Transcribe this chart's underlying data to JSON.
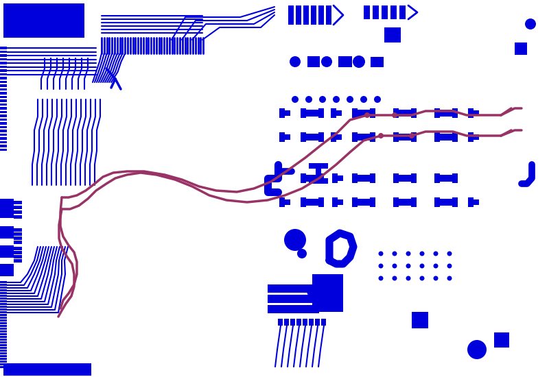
{
  "bg_color": "#ffffff",
  "blue": "#0000dd",
  "pink": "#993366",
  "fig_width": 8.0,
  "fig_height": 5.5,
  "dpi": 100
}
